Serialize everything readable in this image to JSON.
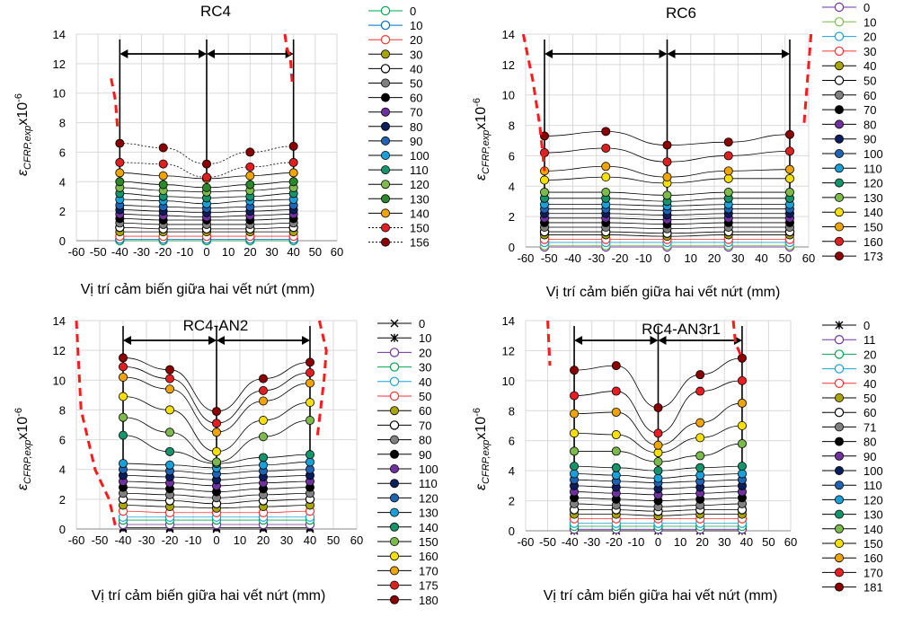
{
  "chart_data": [
    {
      "type": "line",
      "title": "RC4",
      "xlabel": "Vị trí cảm biến giữa hai vết nứt (mm)",
      "ylabel": "εCFRP,exp x10-6",
      "xlim": [
        -60,
        60
      ],
      "ylim": [
        0,
        14
      ],
      "x_ticks": [
        "-60",
        "-50",
        "-40",
        "-30",
        "-20",
        "-10",
        "0",
        "10",
        "20",
        "30",
        "40",
        "50",
        "60"
      ],
      "y_ticks": [
        "0",
        "2",
        "4",
        "6",
        "8",
        "10",
        "12",
        "14"
      ],
      "x": [
        -40,
        -20,
        0,
        20,
        40
      ],
      "vlines": [
        -40,
        0,
        40
      ],
      "grid": true,
      "legend": [
        "0",
        "10",
        "20",
        "30",
        "40",
        "50",
        "60",
        "70",
        "80",
        "90",
        "100",
        "110",
        "120",
        "130",
        "140",
        "150",
        "156"
      ],
      "series": [
        {
          "name": "0",
          "values": [
            0,
            0,
            0,
            0,
            0
          ]
        },
        {
          "name": "10",
          "values": [
            0.1,
            0.1,
            0.1,
            0.1,
            0.1
          ]
        },
        {
          "name": "20",
          "values": [
            0.3,
            0.3,
            0.3,
            0.3,
            0.3
          ]
        },
        {
          "name": "30",
          "values": [
            0.6,
            0.6,
            0.6,
            0.6,
            0.6
          ]
        },
        {
          "name": "40",
          "values": [
            0.9,
            0.8,
            0.8,
            0.8,
            0.9
          ]
        },
        {
          "name": "50",
          "values": [
            1.2,
            1.1,
            1.1,
            1.1,
            1.2
          ]
        },
        {
          "name": "60",
          "values": [
            1.5,
            1.4,
            1.4,
            1.4,
            1.5
          ]
        },
        {
          "name": "70",
          "values": [
            1.8,
            1.7,
            1.6,
            1.7,
            1.8
          ]
        },
        {
          "name": "80",
          "values": [
            2.1,
            2.0,
            1.9,
            2.0,
            2.1
          ]
        },
        {
          "name": "90",
          "values": [
            2.4,
            2.3,
            2.2,
            2.3,
            2.4
          ]
        },
        {
          "name": "100",
          "values": [
            2.8,
            2.7,
            2.5,
            2.7,
            2.8
          ]
        },
        {
          "name": "110",
          "values": [
            3.2,
            3.0,
            2.9,
            3.0,
            3.2
          ]
        },
        {
          "name": "120",
          "values": [
            3.6,
            3.4,
            3.3,
            3.4,
            3.6
          ]
        },
        {
          "name": "130",
          "values": [
            4.0,
            3.8,
            3.6,
            3.8,
            4.0
          ]
        },
        {
          "name": "140",
          "values": [
            4.6,
            4.4,
            4.2,
            4.4,
            4.6
          ]
        },
        {
          "name": "150",
          "values": [
            5.3,
            5.2,
            4.3,
            5.0,
            5.3
          ]
        },
        {
          "name": "156",
          "values": [
            6.6,
            6.3,
            5.2,
            6.0,
            6.4
          ]
        }
      ]
    },
    {
      "type": "line",
      "title": "RC6",
      "xlabel": "Vị trí cảm biến giữa hai vết nứt (mm)",
      "ylabel": "εCFRP,exp x10-6",
      "xlim": [
        -60,
        60
      ],
      "ylim": [
        0,
        14
      ],
      "x_ticks": [
        "-60",
        "-50",
        "-40",
        "-30",
        "-20",
        "-10",
        "0",
        "10",
        "20",
        "30",
        "40",
        "50",
        "60"
      ],
      "y_ticks": [
        "0",
        "2",
        "4",
        "6",
        "8",
        "10",
        "12",
        "14"
      ],
      "x": [
        -52,
        -26,
        0,
        26,
        52
      ],
      "vlines": [
        -52,
        0,
        52
      ],
      "grid": true,
      "legend": [
        "0",
        "10",
        "20",
        "30",
        "40",
        "50",
        "60",
        "70",
        "80",
        "90",
        "100",
        "110",
        "120",
        "130",
        "140",
        "150",
        "160",
        "173"
      ],
      "series": [
        {
          "name": "0",
          "values": [
            0,
            0,
            0,
            0,
            0
          ]
        },
        {
          "name": "10",
          "values": [
            0.1,
            0.1,
            0.1,
            0.1,
            0.1
          ]
        },
        {
          "name": "20",
          "values": [
            0.3,
            0.3,
            0.3,
            0.3,
            0.3
          ]
        },
        {
          "name": "30",
          "values": [
            0.5,
            0.5,
            0.5,
            0.5,
            0.5
          ]
        },
        {
          "name": "40",
          "values": [
            0.8,
            0.8,
            0.7,
            0.8,
            0.8
          ]
        },
        {
          "name": "50",
          "values": [
            1.0,
            1.0,
            0.9,
            1.0,
            1.0
          ]
        },
        {
          "name": "60",
          "values": [
            1.3,
            1.3,
            1.2,
            1.3,
            1.3
          ]
        },
        {
          "name": "70",
          "values": [
            1.6,
            1.6,
            1.5,
            1.6,
            1.6
          ]
        },
        {
          "name": "80",
          "values": [
            1.9,
            1.9,
            1.8,
            1.9,
            1.9
          ]
        },
        {
          "name": "90",
          "values": [
            2.2,
            2.2,
            2.1,
            2.2,
            2.2
          ]
        },
        {
          "name": "100",
          "values": [
            2.5,
            2.5,
            2.4,
            2.5,
            2.5
          ]
        },
        {
          "name": "110",
          "values": [
            2.8,
            2.8,
            2.7,
            2.8,
            2.8
          ]
        },
        {
          "name": "120",
          "values": [
            3.2,
            3.2,
            3.0,
            3.2,
            3.2
          ]
        },
        {
          "name": "130",
          "values": [
            3.6,
            3.6,
            3.4,
            3.6,
            3.6
          ]
        },
        {
          "name": "140",
          "values": [
            4.4,
            4.6,
            4.2,
            4.5,
            4.5
          ]
        },
        {
          "name": "150",
          "values": [
            5.0,
            5.3,
            4.6,
            5.0,
            5.1
          ]
        },
        {
          "name": "160",
          "values": [
            6.2,
            6.5,
            5.6,
            6.0,
            6.3
          ]
        },
        {
          "name": "173",
          "values": [
            7.3,
            7.6,
            6.7,
            6.9,
            7.4
          ]
        }
      ]
    },
    {
      "type": "line",
      "title": "RC4-AN2",
      "xlabel": "Vị trí cảm biến giữa hai vết nứt (mm)",
      "ylabel": "εCFRP,exp x10-6",
      "xlim": [
        -60,
        60
      ],
      "ylim": [
        0,
        14
      ],
      "x_ticks": [
        "-60",
        "-50",
        "-40",
        "-30",
        "-20",
        "-10",
        "0",
        "10",
        "20",
        "30",
        "40",
        "50",
        "60"
      ],
      "y_ticks": [
        "0",
        "2",
        "4",
        "6",
        "8",
        "10",
        "12",
        "14"
      ],
      "x": [
        -40,
        -20,
        0,
        20,
        40
      ],
      "vlines": [
        -40,
        0,
        40
      ],
      "grid": true,
      "legend": [
        "0",
        "10",
        "20",
        "30",
        "40",
        "50",
        "60",
        "70",
        "80",
        "90",
        "100",
        "110",
        "120",
        "130",
        "140",
        "150",
        "160",
        "170",
        "175",
        "180"
      ],
      "series": [
        {
          "name": "0",
          "values": [
            0,
            0,
            0,
            0,
            0
          ]
        },
        {
          "name": "10",
          "values": [
            0.1,
            0.1,
            0.1,
            0.1,
            0.1
          ]
        },
        {
          "name": "20",
          "values": [
            0.3,
            0.3,
            0.3,
            0.3,
            0.3
          ]
        },
        {
          "name": "30",
          "values": [
            0.6,
            0.6,
            0.6,
            0.6,
            0.6
          ]
        },
        {
          "name": "40",
          "values": [
            0.8,
            0.8,
            0.8,
            0.8,
            0.8
          ]
        },
        {
          "name": "50",
          "values": [
            1.2,
            1.1,
            1.1,
            1.1,
            1.2
          ]
        },
        {
          "name": "60",
          "values": [
            1.6,
            1.5,
            1.4,
            1.5,
            1.6
          ]
        },
        {
          "name": "70",
          "values": [
            2.0,
            1.9,
            1.7,
            1.9,
            2.0
          ]
        },
        {
          "name": "80",
          "values": [
            2.4,
            2.3,
            2.1,
            2.3,
            2.4
          ]
        },
        {
          "name": "90",
          "values": [
            2.8,
            2.7,
            2.5,
            2.7,
            2.8
          ]
        },
        {
          "name": "100",
          "values": [
            3.2,
            3.1,
            2.9,
            3.1,
            3.2
          ]
        },
        {
          "name": "110",
          "values": [
            3.6,
            3.5,
            3.3,
            3.5,
            3.6
          ]
        },
        {
          "name": "120",
          "values": [
            4.0,
            3.9,
            3.7,
            3.9,
            4.0
          ]
        },
        {
          "name": "130",
          "values": [
            4.4,
            4.3,
            4.1,
            4.3,
            4.5
          ]
        },
        {
          "name": "140",
          "values": [
            6.3,
            5.2,
            4.4,
            4.8,
            5.0
          ]
        },
        {
          "name": "150",
          "values": [
            7.5,
            6.5,
            4.5,
            6.2,
            7.3
          ]
        },
        {
          "name": "160",
          "values": [
            8.9,
            8.0,
            5.2,
            7.3,
            8.5
          ]
        },
        {
          "name": "170",
          "values": [
            10.2,
            9.4,
            6.5,
            8.6,
            9.8
          ]
        },
        {
          "name": "175",
          "values": [
            10.9,
            10.1,
            7.1,
            9.3,
            10.5
          ]
        },
        {
          "name": "180",
          "values": [
            11.5,
            10.7,
            7.9,
            10.1,
            11.2
          ]
        }
      ]
    },
    {
      "type": "line",
      "title": "RC4-AN3r1",
      "xlabel": "Vị trí cảm biến giữa hai vết nứt (mm)",
      "ylabel": "εCFRP,exp x10-6",
      "xlim": [
        -60,
        60
      ],
      "ylim": [
        0,
        14
      ],
      "x_ticks": [
        "-60",
        "-50",
        "-40",
        "-30",
        "-20",
        "-10",
        "0",
        "10",
        "20",
        "30",
        "40",
        "50",
        "60"
      ],
      "y_ticks": [
        "0",
        "2",
        "4",
        "6",
        "8",
        "10",
        "12",
        "14"
      ],
      "x": [
        -38,
        -19,
        0,
        19,
        38
      ],
      "vlines": [
        -38,
        0,
        38
      ],
      "grid": true,
      "legend": [
        "0",
        "11",
        "20",
        "30",
        "40",
        "50",
        "60",
        "71",
        "80",
        "90",
        "100",
        "110",
        "120",
        "130",
        "140",
        "150",
        "160",
        "170",
        "181"
      ],
      "series": [
        {
          "name": "0",
          "values": [
            0,
            0,
            0,
            0,
            0
          ]
        },
        {
          "name": "11",
          "values": [
            0.1,
            0.1,
            0.1,
            0.1,
            0.1
          ]
        },
        {
          "name": "20",
          "values": [
            0.3,
            0.3,
            0.3,
            0.3,
            0.3
          ]
        },
        {
          "name": "30",
          "values": [
            0.5,
            0.5,
            0.5,
            0.5,
            0.5
          ]
        },
        {
          "name": "40",
          "values": [
            0.8,
            0.8,
            0.8,
            0.8,
            0.8
          ]
        },
        {
          "name": "50",
          "values": [
            1.1,
            1.1,
            1.0,
            1.1,
            1.1
          ]
        },
        {
          "name": "60",
          "values": [
            1.4,
            1.4,
            1.3,
            1.4,
            1.4
          ]
        },
        {
          "name": "71",
          "values": [
            1.8,
            1.7,
            1.6,
            1.7,
            1.8
          ]
        },
        {
          "name": "80",
          "values": [
            2.2,
            2.1,
            2.0,
            2.1,
            2.2
          ]
        },
        {
          "name": "90",
          "values": [
            2.6,
            2.5,
            2.4,
            2.5,
            2.6
          ]
        },
        {
          "name": "100",
          "values": [
            3.0,
            2.9,
            2.8,
            2.9,
            3.0
          ]
        },
        {
          "name": "110",
          "values": [
            3.4,
            3.3,
            3.2,
            3.3,
            3.4
          ]
        },
        {
          "name": "120",
          "values": [
            3.8,
            3.7,
            3.5,
            3.7,
            3.8
          ]
        },
        {
          "name": "130",
          "values": [
            4.3,
            4.2,
            4.0,
            4.2,
            4.3
          ]
        },
        {
          "name": "140",
          "values": [
            5.3,
            5.3,
            4.6,
            5.0,
            5.8
          ]
        },
        {
          "name": "150",
          "values": [
            6.5,
            6.4,
            5.2,
            6.2,
            7.0
          ]
        },
        {
          "name": "160",
          "values": [
            7.8,
            7.9,
            5.7,
            7.2,
            8.5
          ]
        },
        {
          "name": "170",
          "values": [
            9.0,
            9.3,
            6.5,
            9.3,
            10.0
          ]
        },
        {
          "name": "181",
          "values": [
            10.7,
            11.0,
            8.2,
            10.4,
            11.5
          ]
        }
      ]
    }
  ],
  "palette": {
    "0": "#ffffff",
    "10": "#ffffff",
    "20": "#ffffff",
    "30": "#a9a400",
    "40": "#ffffff",
    "50": "#808080",
    "60": "#000000",
    "70": "#7030a0",
    "80": "#0b1d5c",
    "90": "#1f63b5",
    "100": "#1aa0d8",
    "110": "#14946a",
    "120": "#7cba4b",
    "130": "#2a8a2a",
    "140": "#f0a400",
    "150": "#e02020",
    "160": "#f5e000",
    "170": "#ee1d23",
    "180": "#8b0000"
  }
}
